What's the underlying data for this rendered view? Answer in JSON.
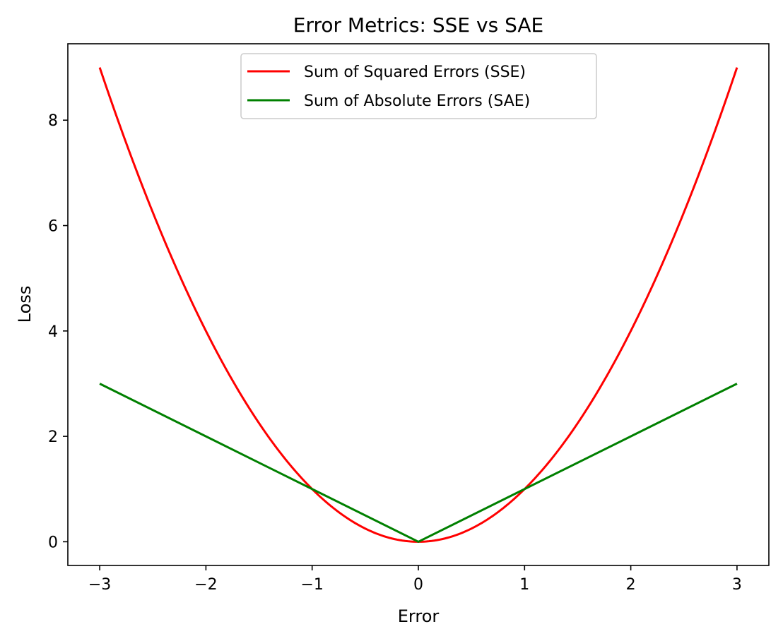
{
  "chart_data": {
    "type": "line",
    "title": "Error Metrics: SSE vs SAE",
    "xlabel": "Error",
    "ylabel": "Loss",
    "xlim": [
      -3.3,
      3.3
    ],
    "ylim": [
      -0.45,
      9.45
    ],
    "xticks": [
      -3,
      -2,
      -1,
      0,
      1,
      2,
      3
    ],
    "xtick_labels": [
      "−3",
      "−2",
      "−1",
      "0",
      "1",
      "2",
      "3"
    ],
    "yticks": [
      0,
      2,
      4,
      6,
      8
    ],
    "ytick_labels": [
      "0",
      "2",
      "4",
      "6",
      "8"
    ],
    "grid": false,
    "legend_position": "upper center",
    "series": [
      {
        "name": "Sum of Squared Errors (SSE)",
        "color": "#ff0000",
        "x": [
          -3.0,
          -2.75,
          -2.5,
          -2.25,
          -2.0,
          -1.75,
          -1.5,
          -1.25,
          -1.0,
          -0.75,
          -0.5,
          -0.25,
          0.0,
          0.25,
          0.5,
          0.75,
          1.0,
          1.25,
          1.5,
          1.75,
          2.0,
          2.25,
          2.5,
          2.75,
          3.0
        ],
        "y": [
          9.0,
          7.5625,
          6.25,
          5.0625,
          4.0,
          3.0625,
          2.25,
          1.5625,
          1.0,
          0.5625,
          0.25,
          0.0625,
          0.0,
          0.0625,
          0.25,
          0.5625,
          1.0,
          1.5625,
          2.25,
          3.0625,
          4.0,
          5.0625,
          6.25,
          7.5625,
          9.0
        ]
      },
      {
        "name": "Sum of Absolute Errors (SAE)",
        "color": "#008000",
        "x": [
          -3.0,
          -2.0,
          -1.0,
          0.0,
          1.0,
          2.0,
          3.0
        ],
        "y": [
          3.0,
          2.0,
          1.0,
          0.0,
          1.0,
          2.0,
          3.0
        ]
      }
    ]
  }
}
